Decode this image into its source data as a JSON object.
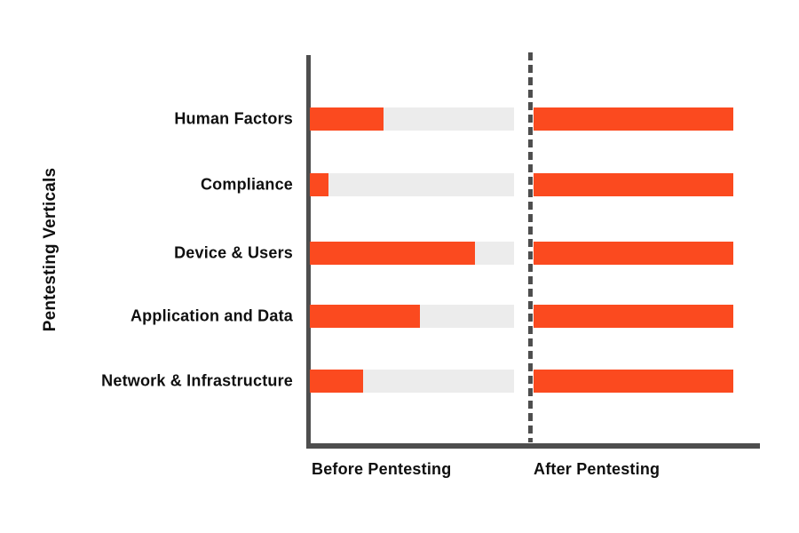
{
  "chart": {
    "y_axis_title": "Pentesting Verticals"
  },
  "colors": {
    "bar_red": "#FB4A1F",
    "track_gray": "#ECECEC",
    "axis_gray": "#4E4E4E",
    "text": "#0F0F0F"
  },
  "chart_data": {
    "type": "bar",
    "orientation": "horizontal",
    "title": "",
    "ylabel": "Pentesting Verticals",
    "xlabel": "",
    "categories": [
      "Human Factors",
      "Compliance",
      "Device & Users",
      "Application and Data",
      "Network & Infrastructure"
    ],
    "series": [
      {
        "name": "Before Pentesting",
        "values": [
          36,
          9,
          81,
          54,
          26
        ]
      },
      {
        "name": "After Pentesting",
        "values": [
          100,
          100,
          100,
          100,
          100
        ]
      }
    ],
    "xlim": [
      0,
      100
    ],
    "grid": false,
    "legend_position": "none",
    "layout_hint": "two side-by-side panels split by dashed vertical divider; before-values drawn as red fill over light gray 100% track; after-values drawn as solid red full bars"
  }
}
